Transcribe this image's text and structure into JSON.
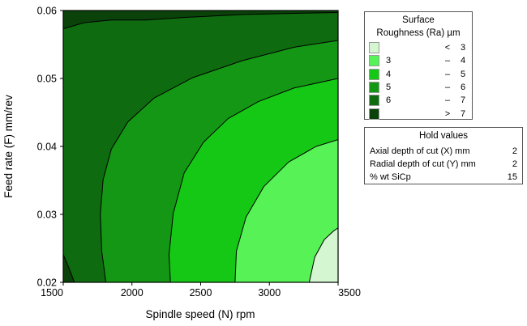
{
  "chart_data": {
    "type": "contour",
    "xlabel": "Spindle speed (N) rpm",
    "ylabel": "Feed rate (F) mm/rev",
    "xlim": [
      1500,
      3500
    ],
    "ylim": [
      0.02,
      0.06
    ],
    "x_ticks": [
      "1500",
      "2000",
      "2500",
      "3000",
      "3500"
    ],
    "y_ticks": [
      "0.02",
      "0.03",
      "0.04",
      "0.05",
      "0.06"
    ],
    "grid": false,
    "contour_lines": [
      {
        "level": 3,
        "points": [
          [
            3290,
            0.02
          ],
          [
            3330,
            0.0237
          ],
          [
            3400,
            0.0263
          ],
          [
            3470,
            0.0276
          ],
          [
            3500,
            0.028
          ]
        ]
      },
      {
        "level": 4,
        "points": [
          [
            2750,
            0.02
          ],
          [
            2760,
            0.0246
          ],
          [
            2830,
            0.0296
          ],
          [
            2960,
            0.0341
          ],
          [
            3140,
            0.0377
          ],
          [
            3340,
            0.04
          ],
          [
            3500,
            0.041
          ]
        ]
      },
      {
        "level": 5,
        "points": [
          [
            2280,
            0.02
          ],
          [
            2270,
            0.0241
          ],
          [
            2300,
            0.0301
          ],
          [
            2380,
            0.0361
          ],
          [
            2520,
            0.0406
          ],
          [
            2700,
            0.0441
          ],
          [
            2920,
            0.0466
          ],
          [
            3180,
            0.0486
          ],
          [
            3500,
            0.05
          ]
        ]
      },
      {
        "level": 6,
        "points": [
          [
            1810,
            0.02
          ],
          [
            1780,
            0.0246
          ],
          [
            1770,
            0.0301
          ],
          [
            1790,
            0.0351
          ],
          [
            1850,
            0.0396
          ],
          [
            1970,
            0.0436
          ],
          [
            2160,
            0.0471
          ],
          [
            2440,
            0.0501
          ],
          [
            2800,
            0.0526
          ],
          [
            3180,
            0.0546
          ],
          [
            3500,
            0.0556
          ]
        ]
      },
      {
        "level": 7,
        "points": [
          [
            1500,
            0.0573
          ],
          [
            1650,
            0.0582
          ],
          [
            1850,
            0.0586
          ],
          [
            2100,
            0.0586
          ],
          [
            2400,
            0.059
          ],
          [
            2800,
            0.0594
          ],
          [
            3200,
            0.0596
          ],
          [
            3500,
            0.0597
          ]
        ]
      },
      {
        "level": 7,
        "points": [
          [
            1500,
            0.0241
          ],
          [
            1540,
            0.0222
          ],
          [
            1570,
            0.0206
          ],
          [
            1580,
            0.02
          ]
        ]
      }
    ],
    "legend": {
      "title": "Surface Roughness (Ra) µm",
      "placement": "right",
      "bands": [
        {
          "lower": "",
          "op": "<",
          "upper": "3",
          "color": "#d4f7d1"
        },
        {
          "lower": "3",
          "op": "–",
          "upper": "4",
          "color": "#56f256"
        },
        {
          "lower": "4",
          "op": "–",
          "upper": "5",
          "color": "#16c816"
        },
        {
          "lower": "5",
          "op": "–",
          "upper": "6",
          "color": "#149714"
        },
        {
          "lower": "6",
          "op": "–",
          "upper": "7",
          "color": "#0f6b0f"
        },
        {
          "lower": "",
          "op": ">",
          "upper": "7",
          "color": "#0a420a"
        }
      ]
    },
    "hold_values": {
      "title": "Hold values",
      "rows": [
        {
          "name": "Axial depth of cut (X) mm",
          "value": "2"
        },
        {
          "name": "Radial depth of cut (Y) mm",
          "value": "2"
        },
        {
          "name": "% wt SiCp",
          "value": "15"
        }
      ]
    }
  }
}
